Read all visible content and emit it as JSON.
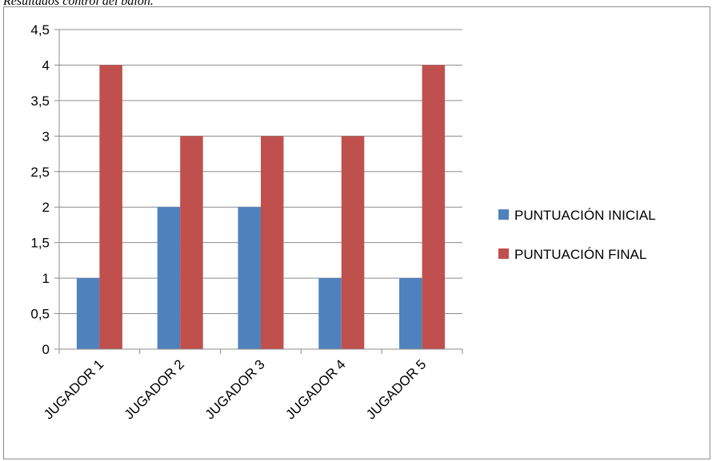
{
  "caption": "Resultados control del balón.",
  "chart_data": {
    "type": "bar",
    "categories": [
      "JUGADOR 1",
      "JUGADOR 2",
      "JUGADOR 3",
      "JUGADOR 4",
      "JUGADOR 5"
    ],
    "series": [
      {
        "name": "PUNTUACIÓN INICIAL",
        "values": [
          1,
          2,
          2,
          1,
          1
        ],
        "color": "#4f81bd"
      },
      {
        "name": "PUNTUACIÓN FINAL",
        "values": [
          4,
          3,
          3,
          3,
          4
        ],
        "color": "#c0504d"
      }
    ],
    "title": "",
    "xlabel": "",
    "ylabel": "",
    "ylim": [
      0,
      4.5
    ],
    "yticks": [
      "0",
      "0,5",
      "1",
      "1,5",
      "2",
      "2,5",
      "3",
      "3,5",
      "4",
      "4,5"
    ],
    "grid": true,
    "legend": "right"
  }
}
